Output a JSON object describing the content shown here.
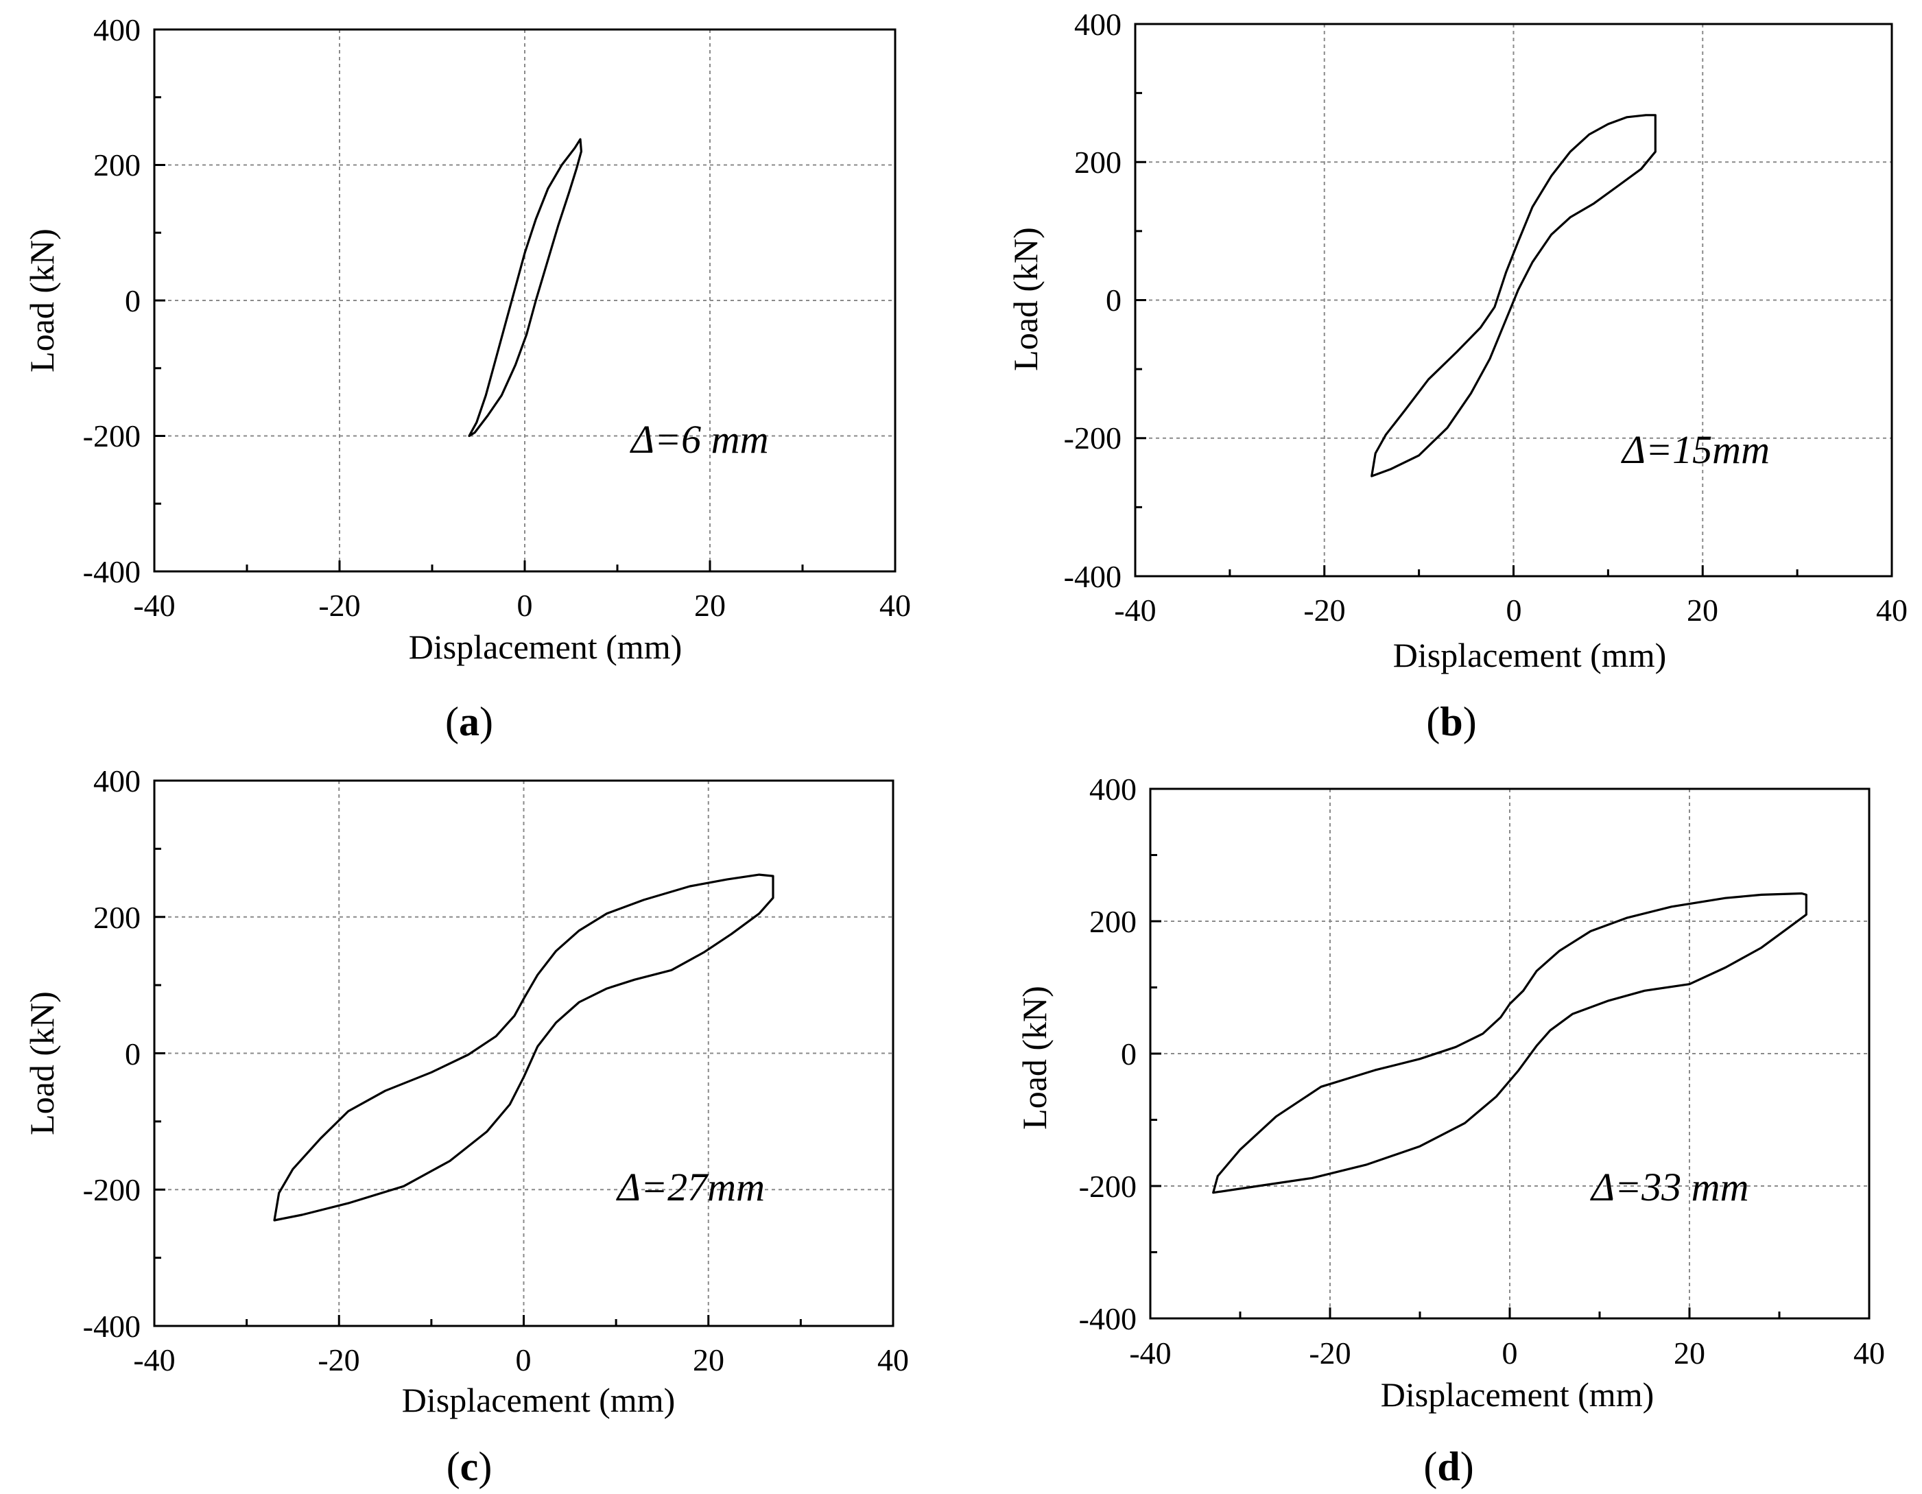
{
  "figure": {
    "panels": [
      "(a)",
      "(b)",
      "(c)",
      "(d)"
    ]
  },
  "chart_data": [
    {
      "type": "line",
      "panel": "a",
      "panel_label": "(a)",
      "xlabel": "Displacement (mm)",
      "ylabel": "Load (kN)",
      "xlim": [
        -40,
        40
      ],
      "ylim": [
        -400,
        400
      ],
      "x_ticks": [
        -40,
        -20,
        0,
        20,
        40
      ],
      "y_ticks": [
        -400,
        -200,
        0,
        200,
        400
      ],
      "x_tick_labels": [
        "-40",
        "-20",
        "0",
        "20",
        "40"
      ],
      "y_tick_labels": [
        "-400",
        "-200",
        "0",
        "200",
        "400"
      ],
      "grid": true,
      "annotation": "Δ=6 mm",
      "series": [
        {
          "name": "hysteresis loop",
          "points": [
            [
              -6,
              -200
            ],
            [
              -5.2,
              -180
            ],
            [
              -4.2,
              -140
            ],
            [
              -3,
              -80
            ],
            [
              -2,
              -30
            ],
            [
              -1,
              20
            ],
            [
              0,
              70
            ],
            [
              1.2,
              120
            ],
            [
              2.5,
              165
            ],
            [
              4,
              200
            ],
            [
              5.4,
              225
            ],
            [
              6,
              238
            ],
            [
              6.1,
              220
            ],
            [
              5.6,
              195
            ],
            [
              4.8,
              160
            ],
            [
              3.6,
              110
            ],
            [
              2.4,
              55
            ],
            [
              1.2,
              0
            ],
            [
              0.2,
              -50
            ],
            [
              -1,
              -95
            ],
            [
              -2.5,
              -140
            ],
            [
              -4,
              -170
            ],
            [
              -5.4,
              -195
            ],
            [
              -6,
              -200
            ]
          ]
        }
      ]
    },
    {
      "type": "line",
      "panel": "b",
      "panel_label": "(b)",
      "xlabel": "Displacement (mm)",
      "ylabel": "Load (kN)",
      "xlim": [
        -40,
        40
      ],
      "ylim": [
        -400,
        400
      ],
      "x_ticks": [
        -40,
        -20,
        0,
        20,
        40
      ],
      "y_ticks": [
        -400,
        -200,
        0,
        200,
        400
      ],
      "x_tick_labels": [
        "-40",
        "-20",
        "0",
        "20",
        "40"
      ],
      "y_tick_labels": [
        "-400",
        "-200",
        "0",
        "200",
        "400"
      ],
      "grid": true,
      "annotation": "Δ=15mm",
      "series": [
        {
          "name": "hysteresis loop",
          "points": [
            [
              -15,
              -255
            ],
            [
              -14.6,
              -222
            ],
            [
              -13.5,
              -195
            ],
            [
              -11.5,
              -160
            ],
            [
              -9,
              -115
            ],
            [
              -6,
              -75
            ],
            [
              -3.5,
              -40
            ],
            [
              -2,
              -10
            ],
            [
              -0.8,
              40
            ],
            [
              0.5,
              85
            ],
            [
              2,
              135
            ],
            [
              4,
              180
            ],
            [
              6,
              215
            ],
            [
              8,
              240
            ],
            [
              10,
              255
            ],
            [
              12,
              265
            ],
            [
              14,
              268
            ],
            [
              15,
              268
            ],
            [
              15,
              215
            ],
            [
              13.5,
              190
            ],
            [
              11,
              165
            ],
            [
              8.5,
              140
            ],
            [
              6,
              120
            ],
            [
              4,
              95
            ],
            [
              2,
              55
            ],
            [
              0.5,
              15
            ],
            [
              -1,
              -35
            ],
            [
              -2.5,
              -85
            ],
            [
              -4.5,
              -135
            ],
            [
              -7,
              -185
            ],
            [
              -10,
              -225
            ],
            [
              -13,
              -245
            ],
            [
              -15,
              -255
            ]
          ]
        }
      ]
    },
    {
      "type": "line",
      "panel": "c",
      "panel_label": "(c)",
      "xlabel": "Displacement (mm)",
      "ylabel": "Load (kN)",
      "xlim": [
        -40,
        40
      ],
      "ylim": [
        -400,
        400
      ],
      "x_ticks": [
        -40,
        -20,
        0,
        20,
        40
      ],
      "y_ticks": [
        -400,
        -200,
        0,
        200,
        400
      ],
      "x_tick_labels": [
        "-40",
        "-20",
        "0",
        "20",
        "40"
      ],
      "y_tick_labels": [
        "-400",
        "-200",
        "0",
        "200",
        "400"
      ],
      "grid": true,
      "annotation": "Δ=27mm",
      "series": [
        {
          "name": "hysteresis loop",
          "points": [
            [
              -27,
              -245
            ],
            [
              -26.5,
              -205
            ],
            [
              -25,
              -170
            ],
            [
              -22,
              -125
            ],
            [
              -19,
              -85
            ],
            [
              -15,
              -55
            ],
            [
              -10,
              -28
            ],
            [
              -6,
              -2
            ],
            [
              -3,
              25
            ],
            [
              -1,
              55
            ],
            [
              0,
              80
            ],
            [
              1.5,
              115
            ],
            [
              3.5,
              150
            ],
            [
              6,
              180
            ],
            [
              9,
              205
            ],
            [
              13,
              225
            ],
            [
              18,
              245
            ],
            [
              22,
              255
            ],
            [
              25.5,
              262
            ],
            [
              27,
              260
            ],
            [
              27,
              228
            ],
            [
              25.5,
              205
            ],
            [
              22.5,
              175
            ],
            [
              19.5,
              148
            ],
            [
              16,
              122
            ],
            [
              12,
              108
            ],
            [
              9,
              95
            ],
            [
              6,
              75
            ],
            [
              3.5,
              45
            ],
            [
              1.5,
              10
            ],
            [
              0,
              -35
            ],
            [
              -1.5,
              -75
            ],
            [
              -4,
              -115
            ],
            [
              -8,
              -158
            ],
            [
              -13,
              -195
            ],
            [
              -19,
              -220
            ],
            [
              -24,
              -237
            ],
            [
              -27,
              -245
            ]
          ]
        }
      ]
    },
    {
      "type": "line",
      "panel": "d",
      "panel_label": "(d)",
      "xlabel": "Displacement (mm)",
      "ylabel": "Load (kN)",
      "xlim": [
        -40,
        40
      ],
      "ylim": [
        -400,
        400
      ],
      "x_ticks": [
        -40,
        -20,
        0,
        20,
        40
      ],
      "y_ticks": [
        -400,
        -200,
        0,
        200,
        400
      ],
      "x_tick_labels": [
        "-40",
        "-20",
        "0",
        "20",
        "40"
      ],
      "y_tick_labels": [
        "-400",
        "-200",
        "0",
        "200",
        "400"
      ],
      "grid": true,
      "annotation": "Δ=33 mm",
      "series": [
        {
          "name": "hysteresis loop",
          "points": [
            [
              -33,
              -210
            ],
            [
              -32.5,
              -185
            ],
            [
              -30,
              -145
            ],
            [
              -26,
              -95
            ],
            [
              -21,
              -50
            ],
            [
              -15,
              -25
            ],
            [
              -10,
              -8
            ],
            [
              -6,
              10
            ],
            [
              -3,
              30
            ],
            [
              -1,
              55
            ],
            [
              0,
              75
            ],
            [
              1.5,
              95
            ],
            [
              3,
              125
            ],
            [
              5.5,
              155
            ],
            [
              9,
              185
            ],
            [
              13,
              205
            ],
            [
              18,
              222
            ],
            [
              24,
              235
            ],
            [
              28,
              240
            ],
            [
              32.5,
              242
            ],
            [
              33,
              240
            ],
            [
              33,
              210
            ],
            [
              31,
              190
            ],
            [
              28,
              160
            ],
            [
              24,
              130
            ],
            [
              20,
              105
            ],
            [
              15,
              95
            ],
            [
              11,
              80
            ],
            [
              7,
              60
            ],
            [
              4.5,
              35
            ],
            [
              3,
              12
            ],
            [
              1,
              -25
            ],
            [
              -1.5,
              -65
            ],
            [
              -5,
              -105
            ],
            [
              -10,
              -140
            ],
            [
              -16,
              -168
            ],
            [
              -22,
              -188
            ],
            [
              -28,
              -200
            ],
            [
              -33,
              -210
            ]
          ]
        }
      ]
    }
  ]
}
